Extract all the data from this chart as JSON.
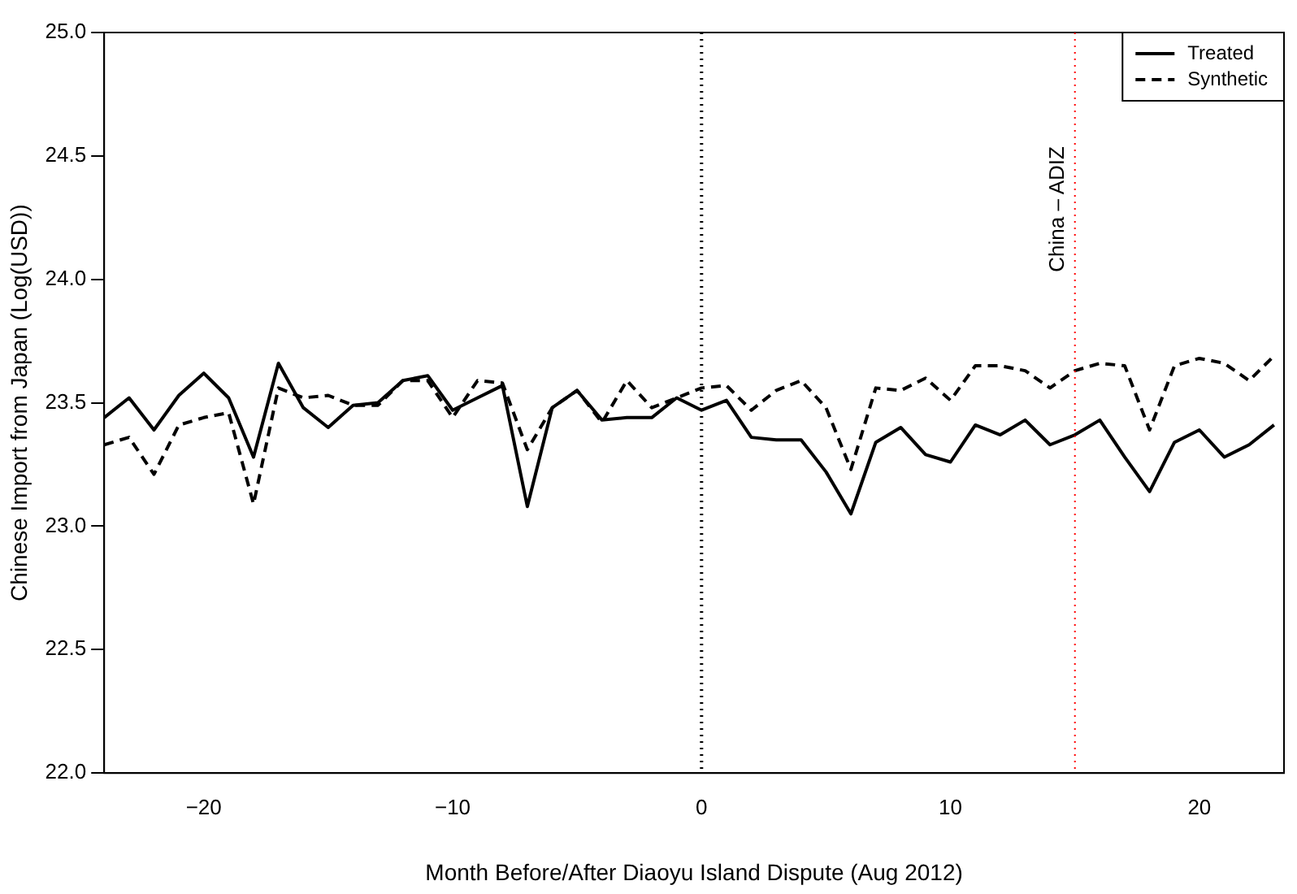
{
  "chart_data": {
    "type": "line",
    "xlabel": "Month Before/After Diaoyu Island Dispute (Aug 2012)",
    "ylabel": "Chinese Import from Japan (Log(USD))",
    "x": [
      -24,
      -23,
      -22,
      -21,
      -20,
      -19,
      -18,
      -17,
      -16,
      -15,
      -14,
      -13,
      -12,
      -11,
      -10,
      -9,
      -8,
      -7,
      -6,
      -5,
      -4,
      -3,
      -2,
      -1,
      0,
      1,
      2,
      3,
      4,
      5,
      6,
      7,
      8,
      9,
      10,
      11,
      12,
      13,
      14,
      15,
      16,
      17,
      18,
      19,
      20,
      21,
      22,
      23
    ],
    "series": [
      {
        "name": "Treated",
        "color": "#000000",
        "line_style": "solid",
        "values": [
          23.44,
          23.52,
          23.39,
          23.53,
          23.62,
          23.52,
          23.28,
          23.66,
          23.48,
          23.4,
          23.49,
          23.5,
          23.59,
          23.61,
          23.47,
          23.52,
          23.57,
          23.08,
          23.48,
          23.55,
          23.43,
          23.44,
          23.44,
          23.52,
          23.47,
          23.51,
          23.36,
          23.35,
          23.35,
          23.22,
          23.05,
          23.34,
          23.4,
          23.29,
          23.26,
          23.41,
          23.37,
          23.43,
          23.33,
          23.37,
          23.43,
          23.28,
          23.14,
          23.34,
          23.39,
          23.28,
          23.33,
          23.41
        ]
      },
      {
        "name": "Synthetic",
        "color": "#000000",
        "line_style": "dashed",
        "values": [
          23.33,
          23.36,
          23.21,
          23.41,
          23.44,
          23.46,
          23.09,
          23.56,
          23.52,
          23.53,
          23.49,
          23.49,
          23.59,
          23.59,
          23.44,
          23.59,
          23.58,
          23.31,
          23.48,
          23.55,
          23.42,
          23.59,
          23.48,
          23.52,
          23.56,
          23.57,
          23.47,
          23.55,
          23.59,
          23.48,
          23.23,
          23.56,
          23.55,
          23.6,
          23.51,
          23.65,
          23.65,
          23.63,
          23.56,
          23.63,
          23.66,
          23.65,
          23.39,
          23.65,
          23.68,
          23.66,
          23.59,
          23.69
        ]
      }
    ],
    "xlim": [
      -24,
      23.4
    ],
    "xticks": [
      -20,
      -10,
      0,
      10,
      20
    ],
    "ylim": [
      22,
      25
    ],
    "yticks": [
      {
        "value": 22,
        "label": "22.0"
      },
      22.5,
      {
        "value": 23,
        "label": "23.0"
      },
      23.5,
      {
        "value": 24,
        "label": "24.0"
      },
      24.5,
      {
        "value": 25,
        "label": "25.0"
      }
    ],
    "ref_lines": [
      {
        "axis": "x",
        "value": 0,
        "color": "#000000",
        "line_style": "dotted"
      },
      {
        "axis": "x",
        "value": 15,
        "label": "China – ADIZ",
        "color": "#ff0000",
        "line_style": "dotted"
      }
    ],
    "legend": "top right",
    "marker": "none",
    "grid": false
  }
}
